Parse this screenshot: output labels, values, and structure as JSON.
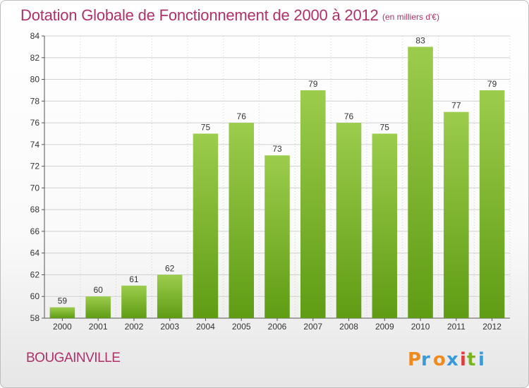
{
  "header": {
    "title": "Dotation Globale de Fonctionnement de 2000 à 2012",
    "unit": "(en milliers d'€)"
  },
  "footer": {
    "commune": "BOUGAINVILLE",
    "logo_text": "Proxiti"
  },
  "colors": {
    "title": "#b0306a",
    "bar_top": "#9ccc4c",
    "bar_bottom": "#5f9c14",
    "grid": "#d0d0d0"
  },
  "chart_data": {
    "type": "bar",
    "title": "Dotation Globale de Fonctionnement de 2000 à 2012",
    "xlabel": "",
    "ylabel": "",
    "categories": [
      "2000",
      "2001",
      "2002",
      "2003",
      "2004",
      "2005",
      "2006",
      "2007",
      "2008",
      "2009",
      "2010",
      "2011",
      "2012"
    ],
    "values": [
      59,
      60,
      61,
      62,
      75,
      76,
      73,
      79,
      76,
      75,
      83,
      77,
      79
    ],
    "ylim": [
      58,
      84
    ],
    "yticks": [
      58,
      60,
      62,
      64,
      66,
      68,
      70,
      72,
      74,
      76,
      78,
      80,
      82,
      84
    ],
    "grid": true,
    "legend": "none"
  }
}
